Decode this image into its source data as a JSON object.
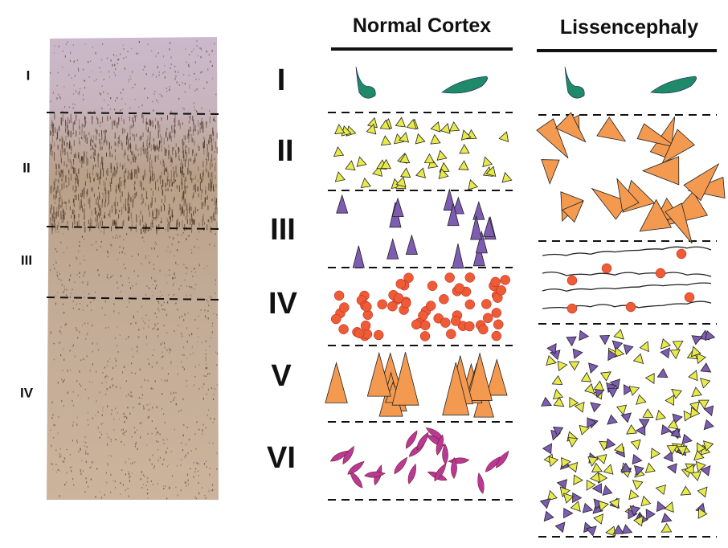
{
  "left_labels": [
    "I",
    "II",
    "III",
    "IV"
  ],
  "headers": [
    "Normal Cortex",
    "Lissencephaly"
  ],
  "layer_labels": [
    "I",
    "II",
    "III",
    "IV",
    "V",
    "VI"
  ]
}
